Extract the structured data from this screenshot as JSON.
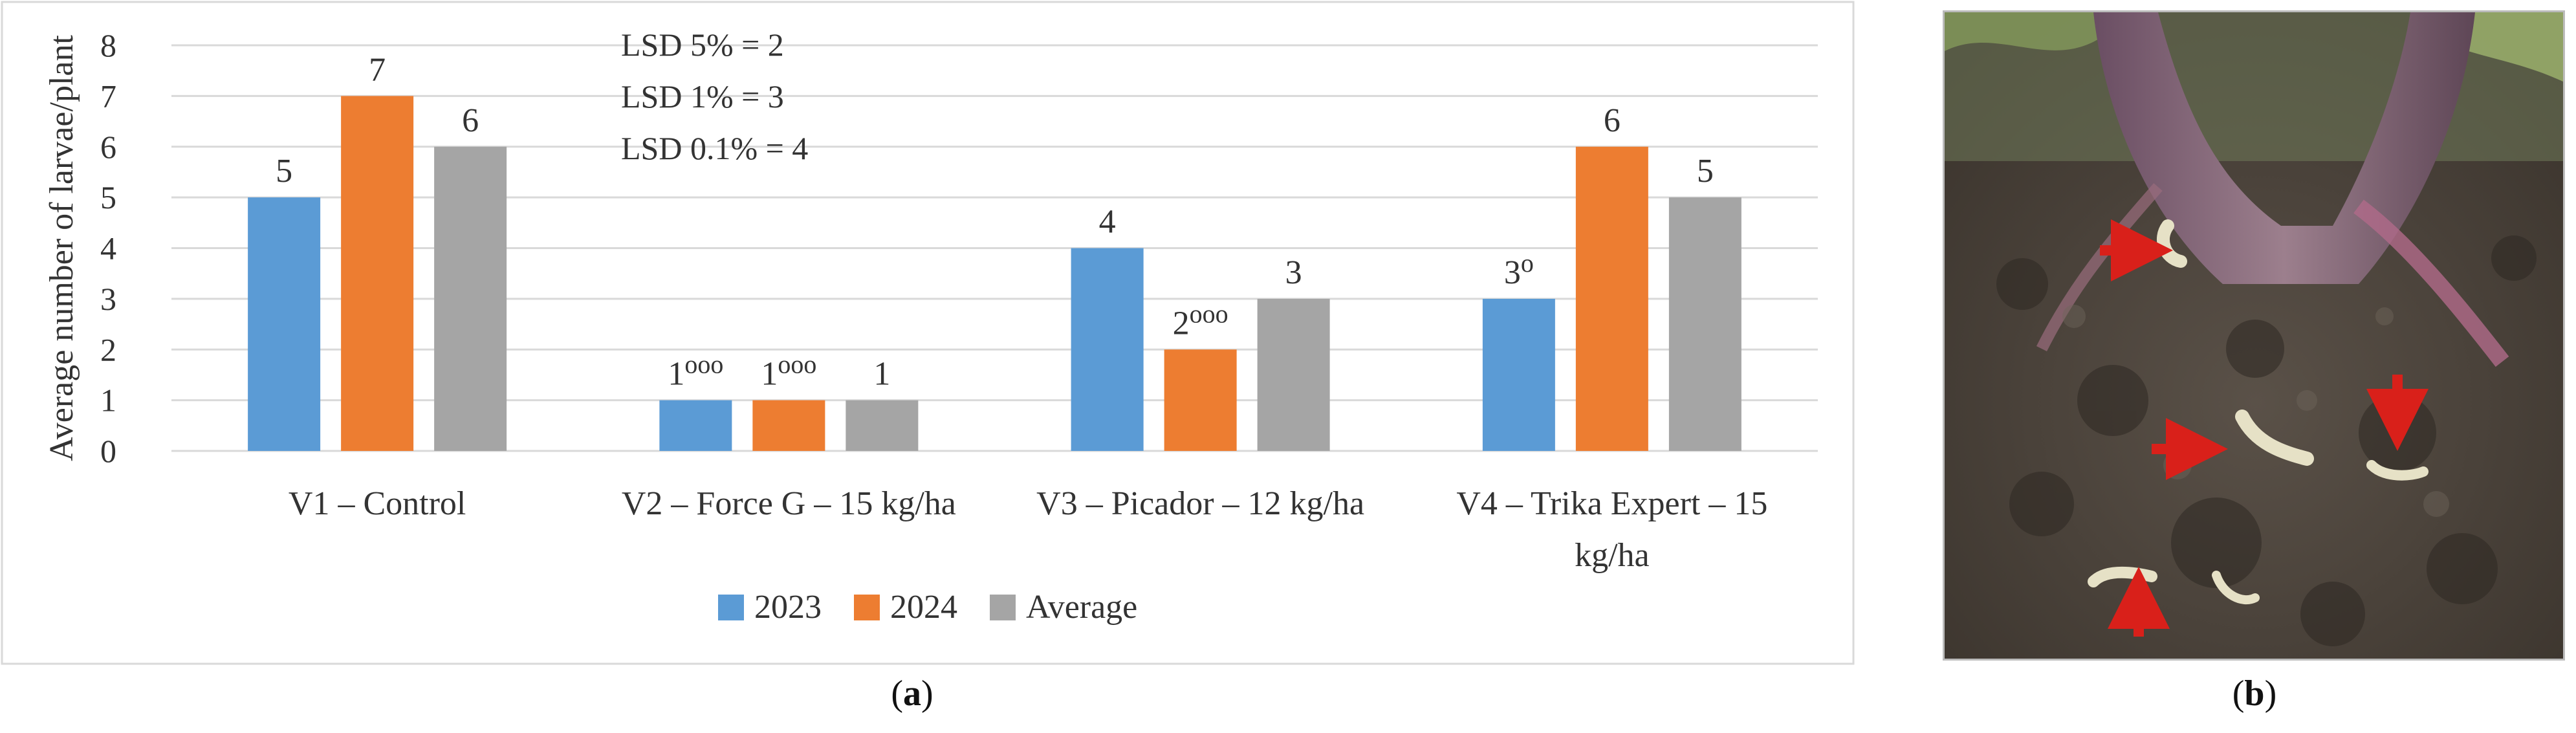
{
  "chart_data": {
    "type": "bar",
    "title": "",
    "xlabel": "",
    "ylabel": "Average number of larvae/plant",
    "ylim": [
      0,
      8
    ],
    "yticks": [
      0,
      1,
      2,
      3,
      4,
      5,
      6,
      7,
      8
    ],
    "grid": true,
    "legend_position": "bottom",
    "categories": [
      [
        "V1 – Control"
      ],
      [
        "V2 – Force G – 15 kg/ha"
      ],
      [
        "V3 – Picador – 12 kg/ha"
      ],
      [
        "V4 – Trika Expert – 15",
        "kg/ha"
      ]
    ],
    "series": [
      {
        "name": "2023",
        "color": "#5b9bd5",
        "values": [
          5,
          1,
          4,
          3
        ],
        "labels": [
          [
            "5",
            ""
          ],
          [
            "1",
            "ooo"
          ],
          [
            "4",
            ""
          ],
          [
            "3",
            "o"
          ]
        ]
      },
      {
        "name": "2024",
        "color": "#ed7d31",
        "values": [
          7,
          1,
          2,
          6
        ],
        "labels": [
          [
            "7",
            ""
          ],
          [
            "1",
            "ooo"
          ],
          [
            "2",
            "ooo"
          ],
          [
            "6",
            ""
          ]
        ]
      },
      {
        "name": "Average",
        "color": "#a5a5a5",
        "values": [
          6,
          1,
          3,
          5
        ],
        "labels": [
          [
            "6",
            ""
          ],
          [
            "1",
            ""
          ],
          [
            "3",
            ""
          ],
          [
            "5",
            ""
          ]
        ]
      }
    ],
    "annotations": [
      "LSD 5% = 2",
      "LSD 1% = 3",
      "LSD 0.1% = 4"
    ]
  },
  "captions": {
    "left": "a",
    "right": "b"
  },
  "photo": {
    "description_icon": "photo-larvae-in-soil-icon",
    "arrow_color": "#d9201a"
  }
}
